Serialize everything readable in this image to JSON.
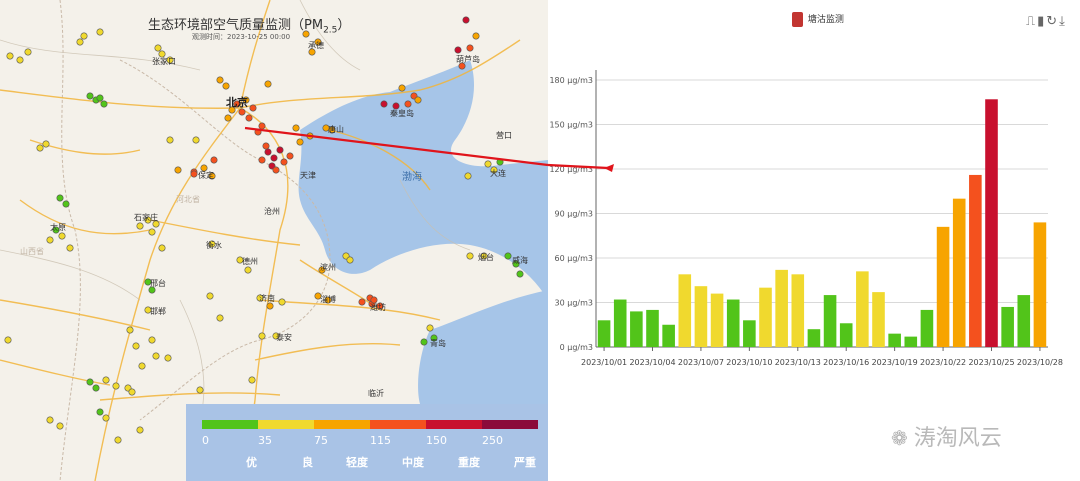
{
  "map": {
    "title": "生态环境部空气质量监测（PM",
    "title_sub": "2.5",
    "title_close": "）",
    "time": "观测时间：2023-10-25 00:00",
    "places": {
      "beijing": "北京",
      "bohai": "渤海",
      "tianjin": "天津",
      "shijiazhuang": "石家庄",
      "jinan": "济南",
      "dalian": "大连",
      "tangshan": "唐山",
      "baoding": "保定",
      "cangzhou": "沧州",
      "hengshui": "衡水",
      "dezhou": "德州",
      "binzhou": "滨州",
      "zibo": "淄博",
      "weifang": "潍坊",
      "yantai": "烟台",
      "weihai": "威海",
      "qingdao": "青岛",
      "taian": "泰安",
      "linyi": "临沂",
      "handan": "邯郸",
      "xingtai": "邢台",
      "taiyuan": "太原",
      "zhangjiakou": "张家口",
      "chengde": "承德",
      "qinhuangdao": "秦皇岛",
      "huludao": "葫芦岛",
      "yingkou": "营口",
      "shanxi": "山西省",
      "hebei": "河北省"
    },
    "legend": {
      "thresholds": [
        "0",
        "35",
        "75",
        "115",
        "150",
        "250"
      ],
      "levels": [
        "优",
        "良",
        "轻度",
        "中度",
        "重度",
        "严重"
      ],
      "colors": [
        "#52c41a",
        "#f0d92e",
        "#f7a400",
        "#f4511e",
        "#c8102e",
        "#8b0a3a"
      ]
    }
  },
  "chart": {
    "legend_label": "塘沽监测",
    "series_color": "#c23531",
    "toolbox_icons": [
      "line-chart-icon",
      "bar-chart-icon",
      "restore-icon",
      "download-icon"
    ]
  },
  "chart_data": {
    "type": "bar",
    "x": [
      "2023/10/01",
      "2023/10/02",
      "2023/10/03",
      "2023/10/04",
      "2023/10/05",
      "2023/10/06",
      "2023/10/07",
      "2023/10/08",
      "2023/10/09",
      "2023/10/10",
      "2023/10/11",
      "2023/10/12",
      "2023/10/13",
      "2023/10/14",
      "2023/10/15",
      "2023/10/16",
      "2023/10/17",
      "2023/10/18",
      "2023/10/19",
      "2023/10/20",
      "2023/10/21",
      "2023/10/22",
      "2023/10/23",
      "2023/10/24",
      "2023/10/25",
      "2023/10/26",
      "2023/10/27",
      "2023/10/28"
    ],
    "tick_labels": [
      "2023/10/01",
      "2023/10/04",
      "2023/10/07",
      "2023/10/10",
      "2023/10/13",
      "2023/10/16",
      "2023/10/19",
      "2023/10/22",
      "2023/10/25",
      "2023/10/28"
    ],
    "series": [
      {
        "name": "塘沽监测",
        "values": [
          18,
          32,
          24,
          25,
          15,
          49,
          41,
          36,
          32,
          18,
          40,
          52,
          49,
          12,
          35,
          16,
          51,
          37,
          9,
          7,
          25,
          81,
          100,
          116,
          167,
          27,
          35,
          84
        ]
      }
    ],
    "ylim": [
      0,
      180
    ],
    "yticks": [
      0,
      30,
      60,
      90,
      120,
      150,
      180
    ],
    "yunit": "μg/m3",
    "grid": true,
    "legend_position": "top-center",
    "color_scale": {
      "breaks": [
        35,
        75,
        115,
        150,
        250
      ],
      "colors": [
        "#52c41a",
        "#f0d92e",
        "#f7a400",
        "#f4511e",
        "#c8102e",
        "#8b0a3a"
      ]
    }
  },
  "watermark": {
    "text": "涛淘风云"
  }
}
